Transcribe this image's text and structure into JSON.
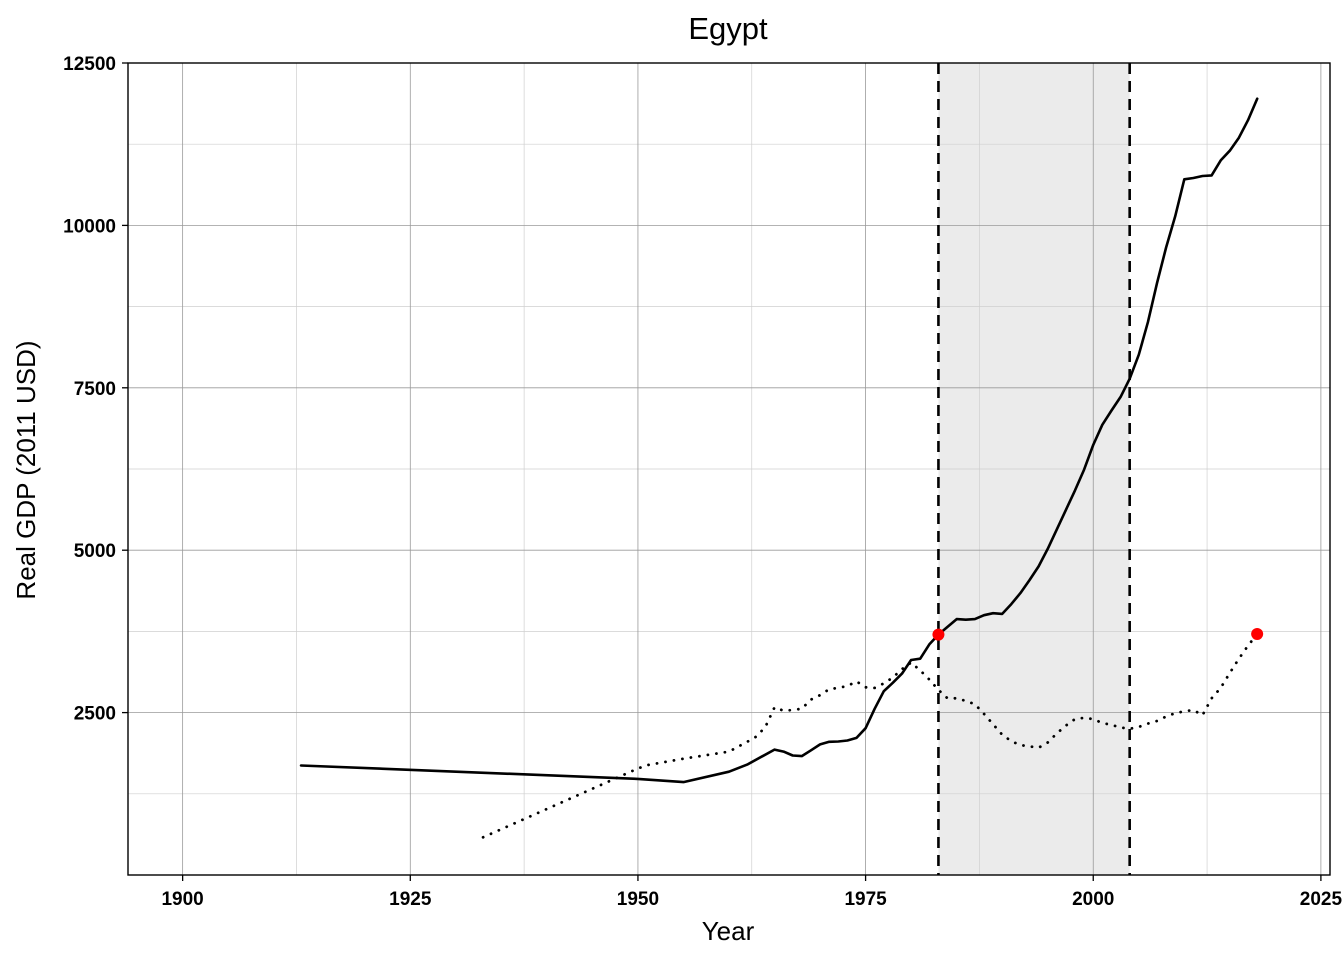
{
  "chart_data": {
    "type": "line",
    "title": "Egypt",
    "xlabel": "Year",
    "ylabel": "Real GDP (2011 USD)",
    "xlim": [
      1894,
      2026
    ],
    "ylim": [
      0,
      12500
    ],
    "x_ticks": [
      1900,
      1925,
      1950,
      1975,
      2000,
      2025
    ],
    "y_ticks": [
      2500,
      5000,
      7500,
      10000,
      12500
    ],
    "x_minor_grid": [
      1912.5,
      1937.5,
      1962.5,
      1987.5,
      2012.5
    ],
    "y_minor_grid": [
      1250,
      3750,
      6250,
      8750,
      11250
    ],
    "grid": true,
    "shaded_region": {
      "x": [
        1983,
        2004
      ],
      "color": "#ebebeb",
      "boundary_style": "dashed"
    },
    "colors": {
      "line": "#000000",
      "marker": "#ff0000",
      "shade": "#ebebeb"
    },
    "series": [
      {
        "style": "solid",
        "x": [
          1913,
          1950,
          1955,
          1960,
          1962,
          1965,
          1966,
          1967,
          1968,
          1969,
          1970,
          1971,
          1972,
          1973,
          1974,
          1975,
          1976,
          1977,
          1978,
          1979,
          1980,
          1981,
          1982,
          1983,
          1984,
          1985,
          1986,
          1987,
          1988,
          1989,
          1990,
          1991,
          1992,
          1993,
          1994,
          1995,
          1996,
          1997,
          1998,
          1999,
          2000,
          2001,
          2002,
          2003,
          2004,
          2005,
          2006,
          2007,
          2008,
          2009,
          2010,
          2011,
          2012,
          2013,
          2014,
          2015,
          2016,
          2017,
          2018
        ],
        "y": [
          1685,
          1480,
          1430,
          1590,
          1700,
          1930,
          1900,
          1840,
          1830,
          1920,
          2010,
          2050,
          2055,
          2070,
          2110,
          2260,
          2560,
          2830,
          2960,
          3100,
          3310,
          3330,
          3550,
          3700,
          3820,
          3940,
          3930,
          3940,
          4000,
          4030,
          4020,
          4170,
          4340,
          4540,
          4750,
          5020,
          5320,
          5620,
          5920,
          6240,
          6620,
          6930,
          7150,
          7360,
          7640,
          8010,
          8510,
          9110,
          9660,
          10140,
          10710,
          10730,
          10760,
          10770,
          11000,
          11150,
          11350,
          11620,
          11950
        ]
      },
      {
        "style": "dotted",
        "x": [
          1933,
          1950,
          1951,
          1955,
          1960,
          1962,
          1963,
          1964,
          1965,
          1966,
          1967,
          1968,
          1969,
          1970,
          1971,
          1972,
          1973,
          1974,
          1975,
          1976,
          1977,
          1978,
          1979,
          1980,
          1981,
          1982,
          1983,
          1984,
          1985,
          1986,
          1987,
          1988,
          1989,
          1990,
          1991,
          1992,
          1993,
          1994,
          1995,
          1996,
          1997,
          1998,
          1999,
          2000,
          2001,
          2002,
          2003,
          2004,
          2005,
          2006,
          2007,
          2008,
          2009,
          2010,
          2011,
          2012,
          2013,
          2014,
          2015,
          2016,
          2017,
          2018
        ],
        "y": [
          580,
          1640,
          1690,
          1790,
          1900,
          2050,
          2130,
          2280,
          2580,
          2530,
          2540,
          2560,
          2700,
          2770,
          2860,
          2880,
          2910,
          2980,
          2890,
          2880,
          2950,
          3040,
          3170,
          3270,
          3150,
          3010,
          2850,
          2720,
          2720,
          2680,
          2630,
          2480,
          2320,
          2160,
          2060,
          2000,
          1980,
          1960,
          2040,
          2180,
          2300,
          2400,
          2420,
          2400,
          2340,
          2310,
          2270,
          2250,
          2280,
          2330,
          2370,
          2440,
          2490,
          2520,
          2540,
          2460,
          2720,
          2880,
          3110,
          3330,
          3530,
          3710
        ]
      }
    ],
    "markers": [
      {
        "x": 1983,
        "y": 3700
      },
      {
        "x": 2018,
        "y": 3710
      }
    ]
  }
}
